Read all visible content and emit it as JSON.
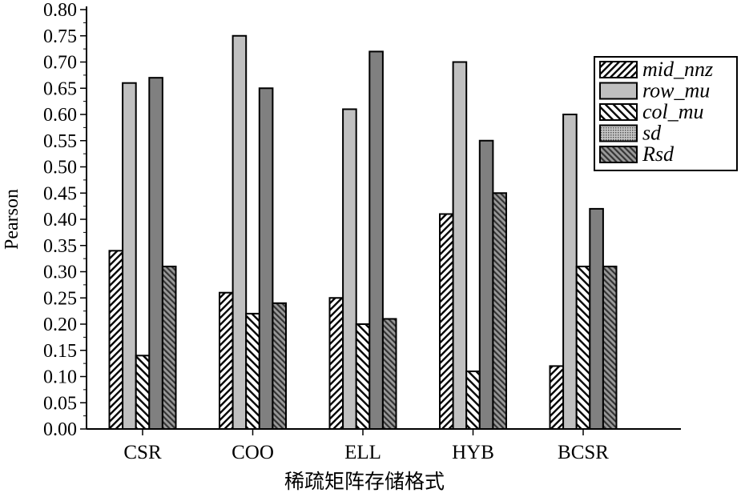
{
  "chart_data": {
    "type": "bar",
    "title": "",
    "xlabel": "稀疏矩阵存储格式",
    "ylabel": "Pearson",
    "ylim": [
      0,
      0.8
    ],
    "yticks": [
      "0.00",
      "0.05",
      "0.10",
      "0.15",
      "0.20",
      "0.25",
      "0.30",
      "0.35",
      "0.40",
      "0.45",
      "0.50",
      "0.55",
      "0.60",
      "0.65",
      "0.70",
      "0.75",
      "0.80"
    ],
    "categories": [
      "CSR",
      "COO",
      "ELL",
      "HYB",
      "BCSR"
    ],
    "legend_position": "top-right",
    "series": [
      {
        "name": "mid_nnz",
        "values": [
          0.34,
          0.26,
          0.25,
          0.41,
          0.12
        ],
        "pattern": "hatch-forward"
      },
      {
        "name": "row_mu",
        "values": [
          0.66,
          0.75,
          0.61,
          0.7,
          0.6
        ],
        "pattern": "solid-light",
        "color": "#c0c0c0"
      },
      {
        "name": "col_mu",
        "values": [
          0.14,
          0.22,
          0.2,
          0.11,
          0.31
        ],
        "pattern": "hatch-back"
      },
      {
        "name": "sd",
        "values": [
          0.67,
          0.65,
          0.72,
          0.55,
          0.42
        ],
        "pattern": "solid-dark",
        "color": "#808080"
      },
      {
        "name": "Rsd",
        "values": [
          0.31,
          0.24,
          0.21,
          0.45,
          0.31
        ],
        "pattern": "hatch-dark"
      }
    ]
  }
}
